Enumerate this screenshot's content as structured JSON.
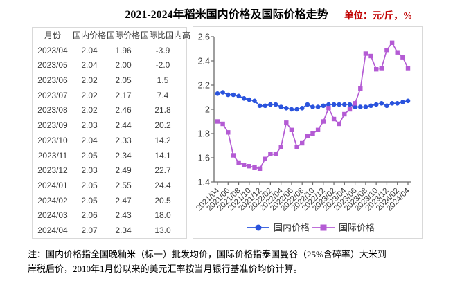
{
  "title": "2021-2024年稻米国内价格及国际价格走势",
  "unit_label": "单位：元/斤，%",
  "table": {
    "headers": [
      "月份",
      "国内价格",
      "国际价格",
      "国际比国内高"
    ],
    "rows": [
      [
        "2023/04",
        "2.04",
        "1.96",
        "-3.9"
      ],
      [
        "2023/05",
        "2.04",
        "2.00",
        "-2.0"
      ],
      [
        "2023/06",
        "2.02",
        "2.05",
        "1.5"
      ],
      [
        "2023/07",
        "2.02",
        "2.17",
        "7.4"
      ],
      [
        "2023/08",
        "2.02",
        "2.46",
        "21.8"
      ],
      [
        "2023/09",
        "2.03",
        "2.44",
        "20.2"
      ],
      [
        "2023/10",
        "2.04",
        "2.33",
        "14.2"
      ],
      [
        "2023/11",
        "2.05",
        "2.34",
        "14.1"
      ],
      [
        "2023/12",
        "2.03",
        "2.49",
        "22.7"
      ],
      [
        "2024/01",
        "2.05",
        "2.55",
        "24.4"
      ],
      [
        "2024/02",
        "2.05",
        "2.47",
        "20.5"
      ],
      [
        "2024/03",
        "2.06",
        "2.43",
        "18.0"
      ],
      [
        "2024/04",
        "2.07",
        "2.34",
        "13.0"
      ]
    ]
  },
  "chart_data": {
    "type": "line",
    "title": "",
    "xlabel": "",
    "ylabel": "",
    "ylim": [
      1.4,
      2.6
    ],
    "ytick_labels": [
      "1.4",
      "1.6",
      "1.8",
      "2",
      "2.2",
      "2.4",
      "2.6"
    ],
    "xtick_every": 2,
    "grid": false,
    "legend_position": "bottom",
    "x": [
      "2021/04",
      "2021/05",
      "2021/06",
      "2021/07",
      "2021/08",
      "2021/09",
      "2021/10",
      "2021/11",
      "2021/12",
      "2022/01",
      "2022/02",
      "2022/03",
      "2022/04",
      "2022/05",
      "2022/06",
      "2022/07",
      "2022/08",
      "2022/09",
      "2022/10",
      "2022/11",
      "2022/12",
      "2023/01",
      "2023/02",
      "2023/03",
      "2023/04",
      "2023/05",
      "2023/06",
      "2023/07",
      "2023/08",
      "2023/09",
      "2023/10",
      "2023/11",
      "2023/12",
      "2024/01",
      "2024/02",
      "2024/03",
      "2024/04"
    ],
    "series": [
      {
        "name": "国内价格",
        "color": "#2a53dd",
        "marker": "circle",
        "values": [
          2.13,
          2.14,
          2.12,
          2.12,
          2.11,
          2.09,
          2.08,
          2.07,
          2.03,
          2.03,
          2.04,
          2.04,
          2.02,
          2.01,
          2.0,
          2.0,
          2.01,
          2.04,
          2.02,
          2.02,
          2.03,
          2.04,
          2.04,
          2.04,
          2.04,
          2.04,
          2.02,
          2.02,
          2.02,
          2.03,
          2.04,
          2.05,
          2.03,
          2.05,
          2.05,
          2.06,
          2.07
        ]
      },
      {
        "name": "国际价格",
        "color": "#b45bd4",
        "marker": "square",
        "values": [
          1.9,
          1.88,
          1.81,
          1.62,
          1.56,
          1.54,
          1.53,
          1.52,
          1.51,
          1.59,
          1.63,
          1.63,
          1.69,
          1.89,
          1.83,
          1.69,
          1.72,
          1.78,
          1.8,
          1.83,
          1.9,
          2.01,
          1.92,
          1.88,
          1.96,
          2.0,
          2.05,
          2.17,
          2.46,
          2.44,
          2.33,
          2.34,
          2.49,
          2.55,
          2.47,
          2.43,
          2.34
        ]
      }
    ],
    "axis_color": "#6b6b6b",
    "tick_label_color": "#3a3a3a"
  },
  "note": {
    "lines": [
      "注：国内价格指全国晚籼米（标一）批发均价，国际价格指泰国曼谷（25%含碎率）大米到",
      "岸税后价，2010年1月份以来的美元汇率按当月银行基准价均价计算。"
    ]
  }
}
